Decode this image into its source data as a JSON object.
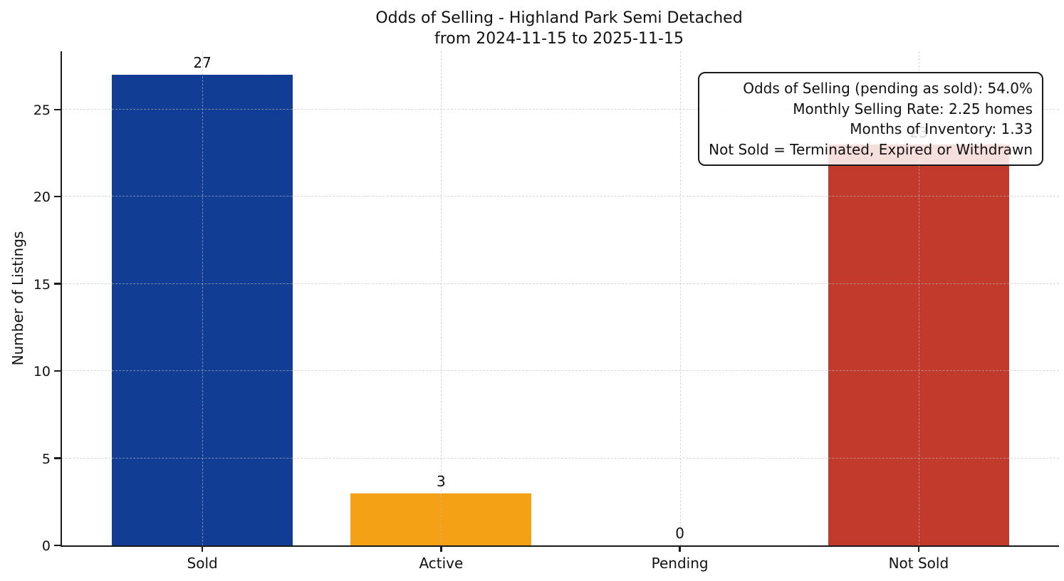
{
  "chart_data": {
    "type": "bar",
    "title_lines": [
      "Odds of Selling - Highland Park Semi Detached",
      "from 2024-11-15 to 2025-11-15"
    ],
    "categories": [
      "Sold",
      "Active",
      "Pending",
      "Not Sold"
    ],
    "values": [
      27,
      3,
      0,
      23
    ],
    "bar_colors": [
      "#113e94",
      "#f4a115",
      null,
      "#c23a2c"
    ],
    "xlabel": "",
    "ylabel": "Number of Listings",
    "ylim": [
      0,
      28.35
    ],
    "yticks": [
      0,
      5,
      10,
      15,
      20,
      25
    ],
    "grid": "dashed-both-axes",
    "legend": "none",
    "info_box": {
      "position": "top-right",
      "lines": [
        "Odds of Selling (pending as sold): 54.0%",
        "Monthly Selling Rate: 2.25 homes",
        "Months of Inventory: 1.33",
        "Not Sold = Terminated, Expired or Withdrawn"
      ]
    }
  }
}
